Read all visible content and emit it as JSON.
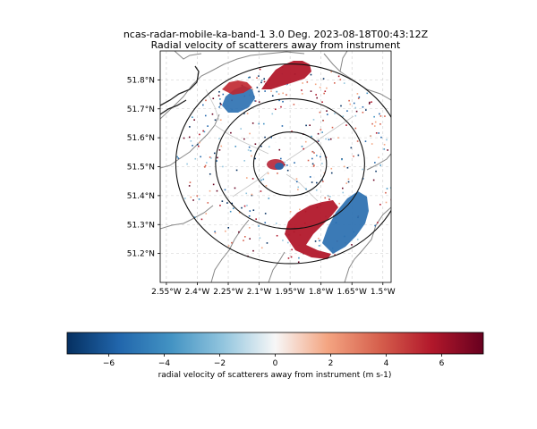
{
  "chart_data": {
    "type": "heatmap",
    "title_line1": "ncas-radar-mobile-ka-band-1 3.0 Deg. 2023-08-18T00:43:12Z",
    "title_line2": "Radial velocity of scatterers away from instrument",
    "x_ticks": [
      "2.55°W",
      "2.4°W",
      "2.25°W",
      "2.1°W",
      "1.95°W",
      "1.8°W",
      "1.65°W",
      "1.5°W"
    ],
    "x_tick_values": [
      -2.55,
      -2.4,
      -2.25,
      -2.1,
      -1.95,
      -1.8,
      -1.65,
      -1.5
    ],
    "y_ticks": [
      "51.8°N",
      "51.7°N",
      "51.6°N",
      "51.5°N",
      "51.4°N",
      "51.3°N",
      "51.2°N"
    ],
    "y_tick_values": [
      51.8,
      51.7,
      51.6,
      51.5,
      51.4,
      51.3,
      51.2
    ],
    "xlim": [
      -2.58,
      -1.46
    ],
    "ylim": [
      51.1,
      51.9
    ],
    "grid": true,
    "radar_center": {
      "lon": -1.95,
      "lat": 51.51
    },
    "range_rings_lat_deg": [
      0.11,
      0.225,
      0.345
    ],
    "colorbar": {
      "label": "radial velocity of scatterers away from instrument (m s-1)",
      "ticks": [
        -6,
        -4,
        -2,
        0,
        2,
        4,
        6
      ],
      "tick_labels": [
        "−6",
        "−4",
        "−2",
        "0",
        "2",
        "4",
        "6"
      ],
      "range": [
        -7.5,
        7.5
      ],
      "colormap": "RdBu_r",
      "colors": [
        "#053061",
        "#2166ac",
        "#4393c3",
        "#92c5de",
        "#f7f7f7",
        "#f4a582",
        "#d6604d",
        "#b2182b",
        "#67001f"
      ]
    },
    "echo_regions": [
      {
        "lon": -1.88,
        "lat": 51.83,
        "velocity": 6.0
      },
      {
        "lon": -2.08,
        "lat": 51.73,
        "velocity": -5.5
      },
      {
        "lon": -1.83,
        "lat": 51.31,
        "velocity": 6.5
      },
      {
        "lon": -1.7,
        "lat": 51.31,
        "velocity": -5.0
      },
      {
        "lon": -1.95,
        "lat": 51.51,
        "velocity": 0
      }
    ]
  }
}
